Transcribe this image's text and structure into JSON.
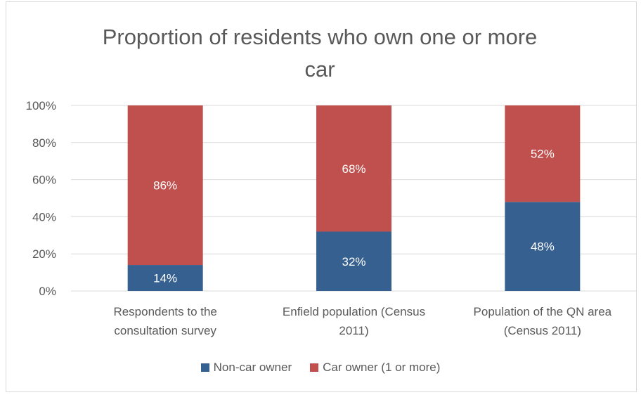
{
  "chart_data": {
    "type": "bar",
    "stacked": true,
    "title": "Proportion of residents who own one or more car",
    "categories": [
      [
        "Respondents to the",
        "consultation survey"
      ],
      [
        "Enfield population (Census",
        "2011)"
      ],
      [
        "Population of the QN area",
        "(Census 2011)"
      ]
    ],
    "series": [
      {
        "name": "Non-car owner",
        "values": [
          14,
          32,
          48
        ],
        "labels": [
          "14%",
          "32%",
          "48%"
        ],
        "color": "#35608f"
      },
      {
        "name": "Car owner (1 or more)",
        "values": [
          86,
          68,
          52
        ],
        "labels": [
          "86%",
          "68%",
          "52%"
        ],
        "color": "#c0504d"
      }
    ],
    "ylim": [
      0,
      100
    ],
    "yticks": [
      "0%",
      "20%",
      "40%",
      "60%",
      "80%",
      "100%"
    ],
    "grid": true,
    "legend_position": "bottom"
  }
}
